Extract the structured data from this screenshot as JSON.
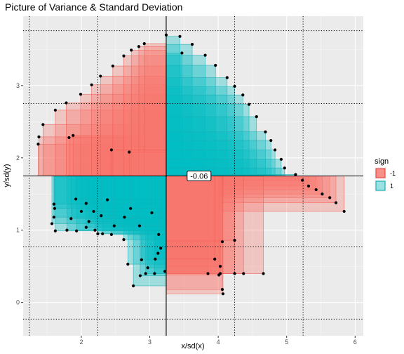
{
  "chart_data": {
    "type": "scatter",
    "title": "Picture of Variance & Standard Deviation",
    "xlabel": "x/sd(x)",
    "ylabel": "y/sd(y)",
    "xlim": [
      1.15,
      6.12
    ],
    "ylim": [
      -0.46,
      3.96
    ],
    "x_ticks": [
      2,
      3,
      4,
      5,
      6
    ],
    "y_ticks": [
      0,
      1,
      2,
      3
    ],
    "grid": true,
    "mean": {
      "x": 3.24,
      "y": 1.75
    },
    "sd_lines": {
      "x": [
        1.24,
        2.24,
        4.24,
        5.24
      ],
      "y": [
        -0.23,
        0.77,
        2.75,
        3.76
      ]
    },
    "legend": {
      "title": "sign",
      "placement": "right",
      "entries": [
        {
          "label": "-1",
          "color": "#F8766D"
        },
        {
          "label": "1",
          "color": "#00BFC4"
        }
      ]
    },
    "annotation": {
      "text": "-0.06",
      "x": 3.72,
      "y": 1.75
    },
    "points": [
      {
        "x": 1.37,
        "y": 2.19
      },
      {
        "x": 1.38,
        "y": 2.29
      },
      {
        "x": 1.44,
        "y": 2.46
      },
      {
        "x": 1.62,
        "y": 2.66
      },
      {
        "x": 1.78,
        "y": 2.76
      },
      {
        "x": 1.88,
        "y": 2.31
      },
      {
        "x": 1.82,
        "y": 2.28
      },
      {
        "x": 1.99,
        "y": 2.88
      },
      {
        "x": 2.15,
        "y": 3.01
      },
      {
        "x": 2.28,
        "y": 3.13
      },
      {
        "x": 2.46,
        "y": 3.27
      },
      {
        "x": 2.62,
        "y": 3.41
      },
      {
        "x": 2.73,
        "y": 3.49
      },
      {
        "x": 2.84,
        "y": 3.54
      },
      {
        "x": 2.92,
        "y": 3.58
      },
      {
        "x": 3.24,
        "y": 3.7
      },
      {
        "x": 3.44,
        "y": 3.68
      },
      {
        "x": 3.62,
        "y": 3.57
      },
      {
        "x": 3.81,
        "y": 3.42
      },
      {
        "x": 3.96,
        "y": 3.28
      },
      {
        "x": 4.13,
        "y": 3.11
      },
      {
        "x": 4.24,
        "y": 2.99
      },
      {
        "x": 4.36,
        "y": 2.87
      },
      {
        "x": 4.45,
        "y": 2.74
      },
      {
        "x": 4.56,
        "y": 2.57
      },
      {
        "x": 4.69,
        "y": 2.36
      },
      {
        "x": 4.77,
        "y": 2.24
      },
      {
        "x": 4.83,
        "y": 2.11
      },
      {
        "x": 4.92,
        "y": 1.98
      },
      {
        "x": 4.97,
        "y": 1.86
      },
      {
        "x": 5.13,
        "y": 1.77
      },
      {
        "x": 5.23,
        "y": 1.69
      },
      {
        "x": 5.32,
        "y": 1.61
      },
      {
        "x": 5.43,
        "y": 1.56
      },
      {
        "x": 5.52,
        "y": 1.5
      },
      {
        "x": 5.63,
        "y": 1.45
      },
      {
        "x": 5.72,
        "y": 1.38
      },
      {
        "x": 5.84,
        "y": 1.26
      },
      {
        "x": 4.66,
        "y": 0.4
      },
      {
        "x": 4.37,
        "y": 0.4
      },
      {
        "x": 4.24,
        "y": 0.4
      },
      {
        "x": 4.03,
        "y": 0.4
      },
      {
        "x": 3.85,
        "y": 0.4
      },
      {
        "x": 4.03,
        "y": 0.5
      },
      {
        "x": 4.01,
        "y": 0.38
      },
      {
        "x": 4.06,
        "y": 0.18
      },
      {
        "x": 4.07,
        "y": 0.12
      },
      {
        "x": 4.24,
        "y": 0.86
      },
      {
        "x": 4.06,
        "y": 0.84
      },
      {
        "x": 3.95,
        "y": 0.6
      },
      {
        "x": 2.76,
        "y": 0.23
      },
      {
        "x": 2.86,
        "y": 0.37
      },
      {
        "x": 2.94,
        "y": 0.4
      },
      {
        "x": 3.07,
        "y": 0.4
      },
      {
        "x": 3.22,
        "y": 0.43
      },
      {
        "x": 2.97,
        "y": 0.48
      },
      {
        "x": 2.68,
        "y": 0.53
      },
      {
        "x": 2.88,
        "y": 0.59
      },
      {
        "x": 3.12,
        "y": 0.68
      },
      {
        "x": 3.16,
        "y": 0.75
      },
      {
        "x": 2.62,
        "y": 0.87
      },
      {
        "x": 1.79,
        "y": 1.0
      },
      {
        "x": 1.93,
        "y": 0.99
      },
      {
        "x": 2.07,
        "y": 1.04
      },
      {
        "x": 2.2,
        "y": 1.0
      },
      {
        "x": 2.24,
        "y": 0.95
      },
      {
        "x": 2.31,
        "y": 0.95
      },
      {
        "x": 2.44,
        "y": 0.94
      },
      {
        "x": 1.62,
        "y": 0.99
      },
      {
        "x": 1.57,
        "y": 1.09
      },
      {
        "x": 1.6,
        "y": 1.18
      },
      {
        "x": 1.61,
        "y": 1.3
      },
      {
        "x": 1.6,
        "y": 1.36
      },
      {
        "x": 2.11,
        "y": 1.12
      },
      {
        "x": 1.85,
        "y": 1.16
      },
      {
        "x": 2.0,
        "y": 1.26
      },
      {
        "x": 2.07,
        "y": 1.37
      },
      {
        "x": 2.18,
        "y": 1.26
      },
      {
        "x": 1.92,
        "y": 1.43
      },
      {
        "x": 2.38,
        "y": 1.42
      },
      {
        "x": 2.29,
        "y": 1.2
      },
      {
        "x": 2.63,
        "y": 1.18
      },
      {
        "x": 2.85,
        "y": 1.06
      },
      {
        "x": 2.48,
        "y": 1.06
      },
      {
        "x": 2.72,
        "y": 1.3
      },
      {
        "x": 3.08,
        "y": 0.6
      },
      {
        "x": 3.13,
        "y": 0.94
      },
      {
        "x": 3.03,
        "y": 1.24
      },
      {
        "x": 2.7,
        "y": 2.08
      },
      {
        "x": 3.47,
        "y": 3.45
      },
      {
        "x": 2.44,
        "y": 2.11
      }
    ]
  }
}
